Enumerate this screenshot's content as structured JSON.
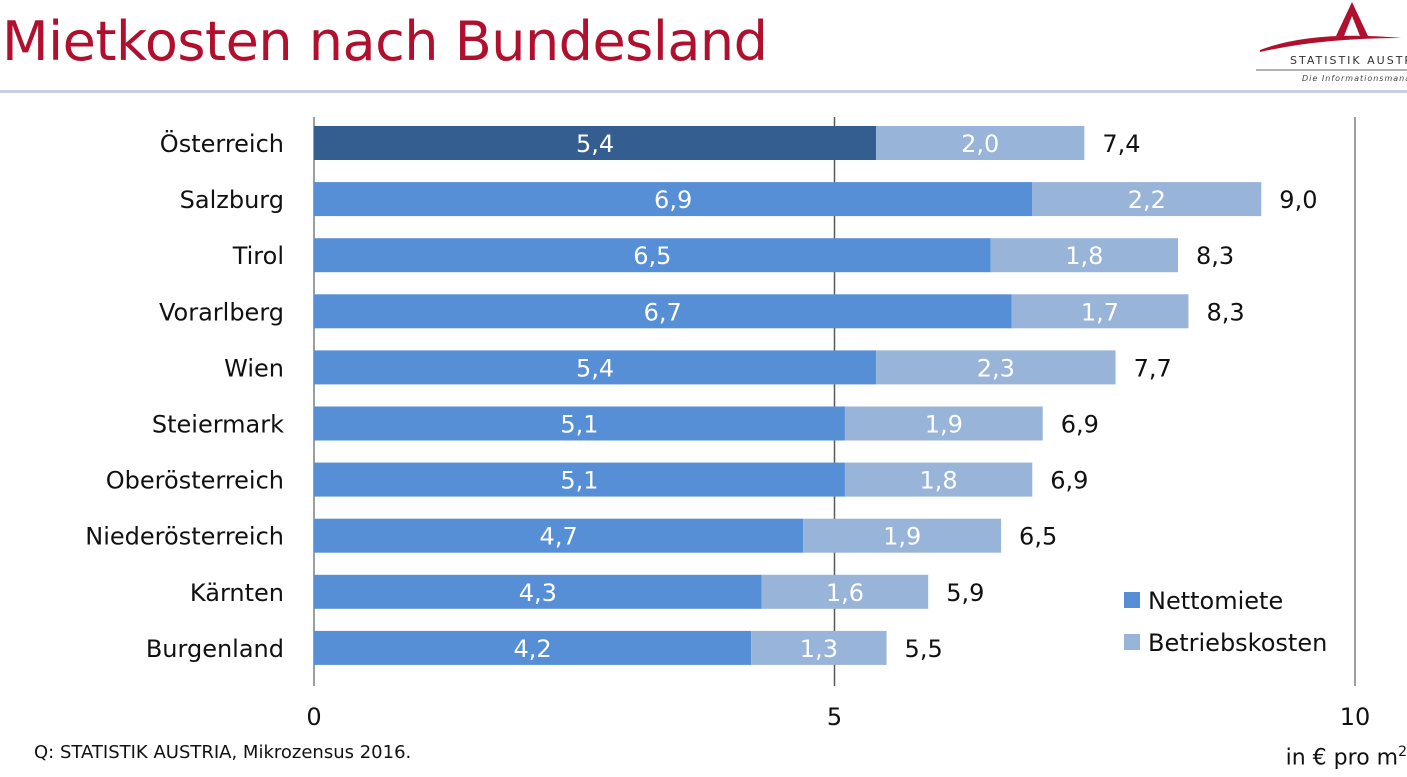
{
  "header": {
    "title": "Mietkosten nach Bundesland",
    "logo_text": "STATISTIK AUSTRIA",
    "logo_tagline": "Die Informationsmanager"
  },
  "footer": {
    "source": "Q: STATISTIK AUSTRIA, Mikrozensus 2016.",
    "unit": "in € pro m",
    "unit_sup": "2"
  },
  "colors": {
    "title": "#b0102e",
    "nettomiete": "#568fd6",
    "nettomiete_highlight": "#355e90",
    "betriebskosten": "#98b4d8",
    "gridline": "#595959"
  },
  "chart_data": {
    "type": "bar",
    "orientation": "horizontal",
    "stacked": true,
    "categories": [
      "Österreich",
      "Salzburg",
      "Tirol",
      "Vorarlberg",
      "Wien",
      "Steiermark",
      "Oberösterreich",
      "Niederösterreich",
      "Kärnten",
      "Burgenland"
    ],
    "series": [
      {
        "name": "Nettomiete",
        "values": [
          5.4,
          6.9,
          6.5,
          6.7,
          5.4,
          5.1,
          5.1,
          4.7,
          4.3,
          4.2
        ],
        "labels": [
          "5,4",
          "6,9",
          "6,5",
          "6,7",
          "5,4",
          "5,1",
          "5,1",
          "4,7",
          "4,3",
          "4,2"
        ]
      },
      {
        "name": "Betriebskosten",
        "values": [
          2.0,
          2.2,
          1.8,
          1.7,
          2.3,
          1.9,
          1.8,
          1.9,
          1.6,
          1.3
        ],
        "labels": [
          "2,0",
          "2,2",
          "1,8",
          "1,7",
          "2,3",
          "1,9",
          "1,8",
          "1,9",
          "1,6",
          "1,3"
        ]
      }
    ],
    "totals": [
      7.4,
      9.0,
      8.3,
      8.3,
      7.7,
      6.9,
      6.9,
      6.5,
      5.9,
      5.5
    ],
    "total_labels": [
      "7,4",
      "9,0",
      "8,3",
      "8,3",
      "7,7",
      "6,9",
      "6,9",
      "6,5",
      "5,9",
      "5,5"
    ],
    "highlight_category": "Österreich",
    "xlim": [
      0,
      10
    ],
    "xticks": [
      0,
      5,
      10
    ],
    "xtick_labels": [
      "0",
      "5",
      "10"
    ],
    "gridlines": [
      5
    ],
    "legend": {
      "position": "bottom-right",
      "entries": [
        "Nettomiete",
        "Betriebskosten"
      ]
    }
  }
}
